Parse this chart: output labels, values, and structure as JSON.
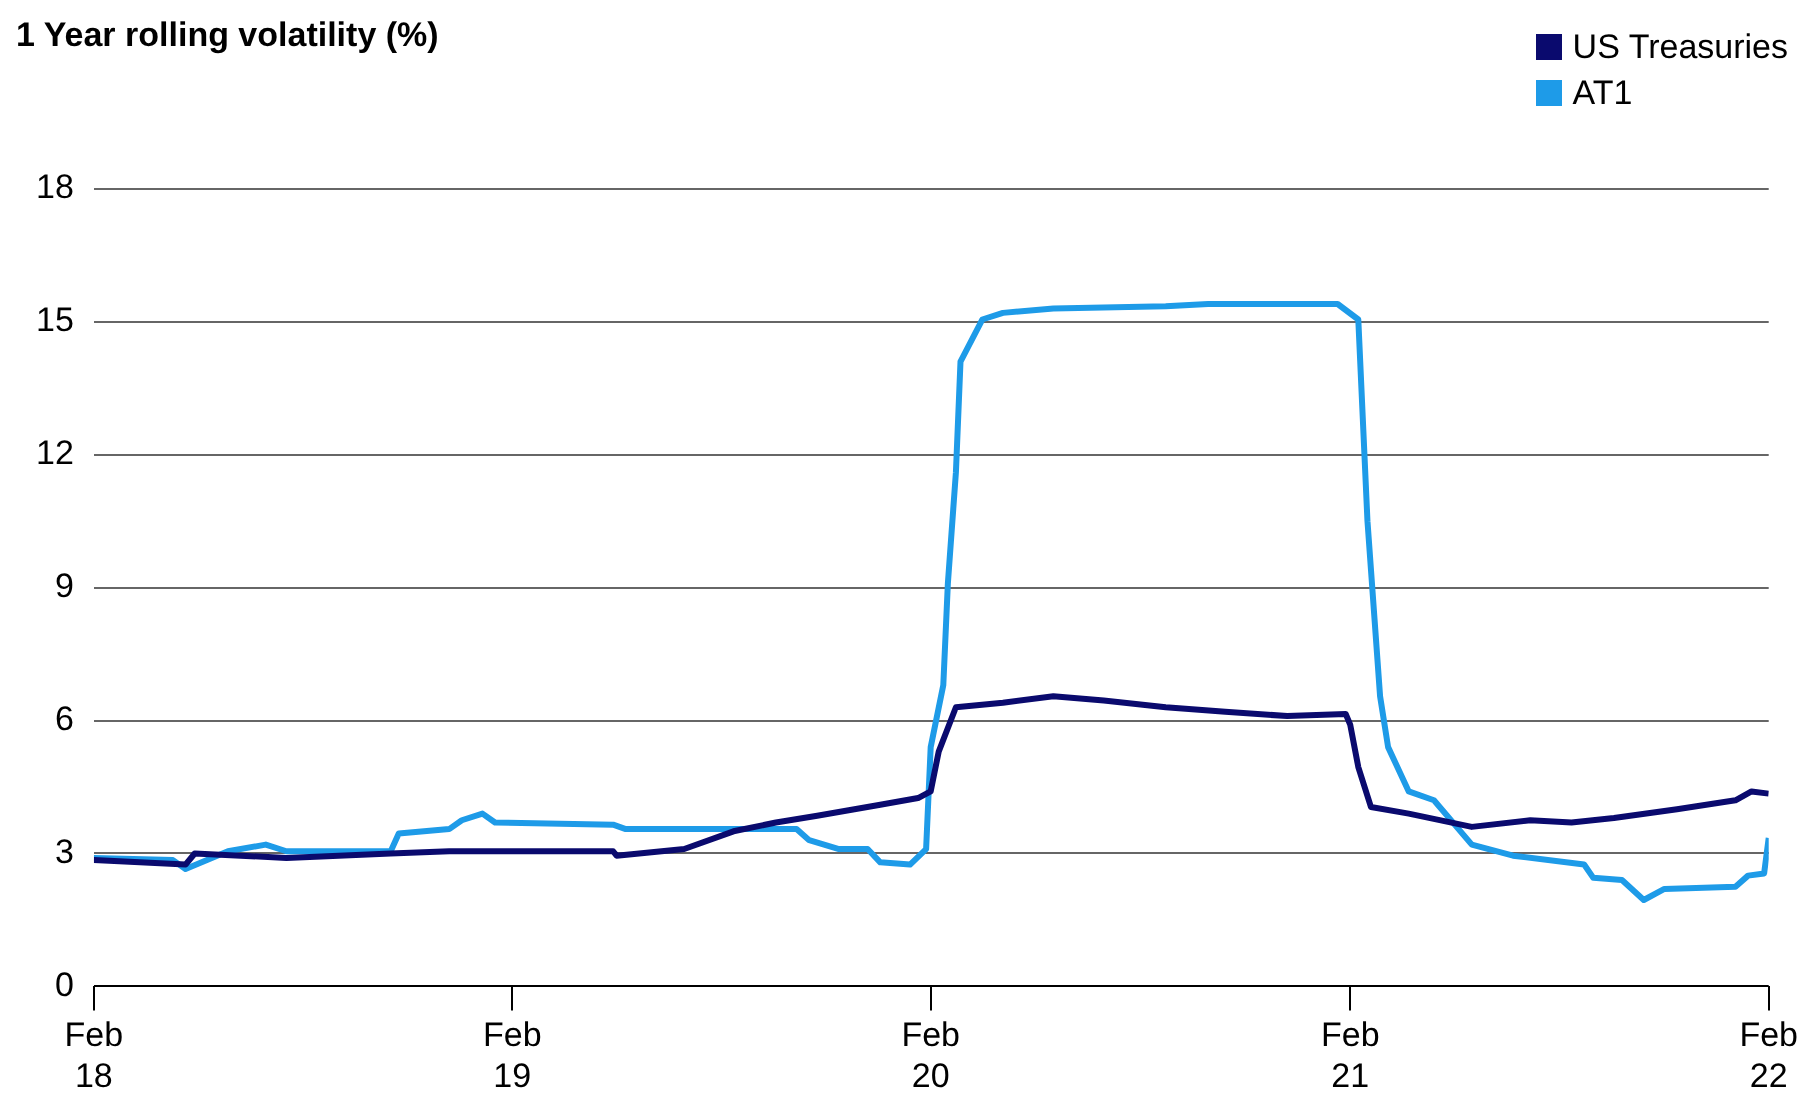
{
  "chart_data": {
    "type": "line",
    "title": "1 Year rolling volatility (%)",
    "legend": "top right",
    "grid": "y",
    "marker": "none",
    "line_style": "solid",
    "xlim": [
      "2018-02-01",
      "2022-02-01"
    ],
    "xticks": [
      {
        "value": "2018-02-01",
        "label": "Feb 18"
      },
      {
        "value": "2019-02-01",
        "label": "Feb 19"
      },
      {
        "value": "2020-02-01",
        "label": "Feb 20"
      },
      {
        "value": "2021-02-01",
        "label": "Feb 21"
      },
      {
        "value": "2022-02-01",
        "label": "Feb 22"
      }
    ],
    "ylim": [
      0,
      18
    ],
    "yticks": [
      0,
      3,
      6,
      9,
      12,
      15,
      18
    ],
    "series": [
      {
        "name": "US Treasuries",
        "color": "#0a0a6e",
        "x": [
          "2018-02-01",
          "2018-04-22",
          "2018-04-30",
          "2018-07-19",
          "2018-10-18",
          "2018-12-08",
          "2019-04-30",
          "2019-05-03",
          "2019-07-01",
          "2019-08-13",
          "2019-09-19",
          "2019-10-25",
          "2019-12-19",
          "2020-01-21",
          "2020-02-01",
          "2020-02-08",
          "2020-02-23",
          "2020-04-04",
          "2020-05-18",
          "2020-07-01",
          "2020-08-24",
          "2020-10-15",
          "2020-12-08",
          "2021-01-28",
          "2021-02-01",
          "2021-02-08",
          "2021-02-19",
          "2021-03-24",
          "2021-05-18",
          "2021-07-08",
          "2021-08-13",
          "2021-09-19",
          "2021-11-13",
          "2022-01-03",
          "2022-01-17",
          "2022-02-01"
        ],
        "values": [
          2.85,
          2.75,
          3.0,
          2.9,
          3.0,
          3.05,
          3.05,
          2.95,
          3.1,
          3.5,
          3.7,
          3.85,
          4.1,
          4.25,
          4.4,
          5.3,
          6.3,
          6.4,
          6.55,
          6.45,
          6.3,
          6.2,
          6.1,
          6.15,
          5.9,
          4.95,
          4.05,
          3.9,
          3.6,
          3.75,
          3.7,
          3.8,
          4.0,
          4.2,
          4.4,
          4.35
        ]
      },
      {
        "name": "AT1",
        "color": "#1e9be8",
        "x": [
          "2018-02-01",
          "2018-04-11",
          "2018-04-22",
          "2018-05-29",
          "2018-07-01",
          "2018-07-19",
          "2018-10-18",
          "2018-10-25",
          "2018-12-08",
          "2018-12-19",
          "2019-01-06",
          "2019-01-17",
          "2019-04-30",
          "2019-05-11",
          "2019-10-07",
          "2019-10-18",
          "2019-11-13",
          "2019-12-08",
          "2019-12-19",
          "2020-01-14",
          "2020-01-28",
          "2020-02-01",
          "2020-02-12",
          "2020-02-16",
          "2020-02-23",
          "2020-02-27",
          "2020-03-17",
          "2020-04-04",
          "2020-05-18",
          "2020-08-24",
          "2020-09-30",
          "2021-01-21",
          "2021-02-08",
          "2021-02-16",
          "2021-02-27",
          "2021-03-06",
          "2021-03-24",
          "2021-04-15",
          "2021-05-18",
          "2021-06-23",
          "2021-08-24",
          "2021-09-01",
          "2021-09-26",
          "2021-10-15",
          "2021-11-02",
          "2022-01-03",
          "2022-01-14",
          "2022-01-28",
          "2022-02-01"
        ],
        "values": [
          2.9,
          2.85,
          2.65,
          3.05,
          3.2,
          3.05,
          3.05,
          3.45,
          3.55,
          3.75,
          3.9,
          3.7,
          3.65,
          3.55,
          3.55,
          3.3,
          3.1,
          3.1,
          2.8,
          2.75,
          3.1,
          5.4,
          6.8,
          9.1,
          11.6,
          14.1,
          15.05,
          15.2,
          15.3,
          15.35,
          15.4,
          15.4,
          15.05,
          10.5,
          6.55,
          5.4,
          4.4,
          4.2,
          3.2,
          2.95,
          2.75,
          2.45,
          2.4,
          1.95,
          2.2,
          2.25,
          2.5,
          2.55,
          3.35
        ]
      }
    ]
  }
}
